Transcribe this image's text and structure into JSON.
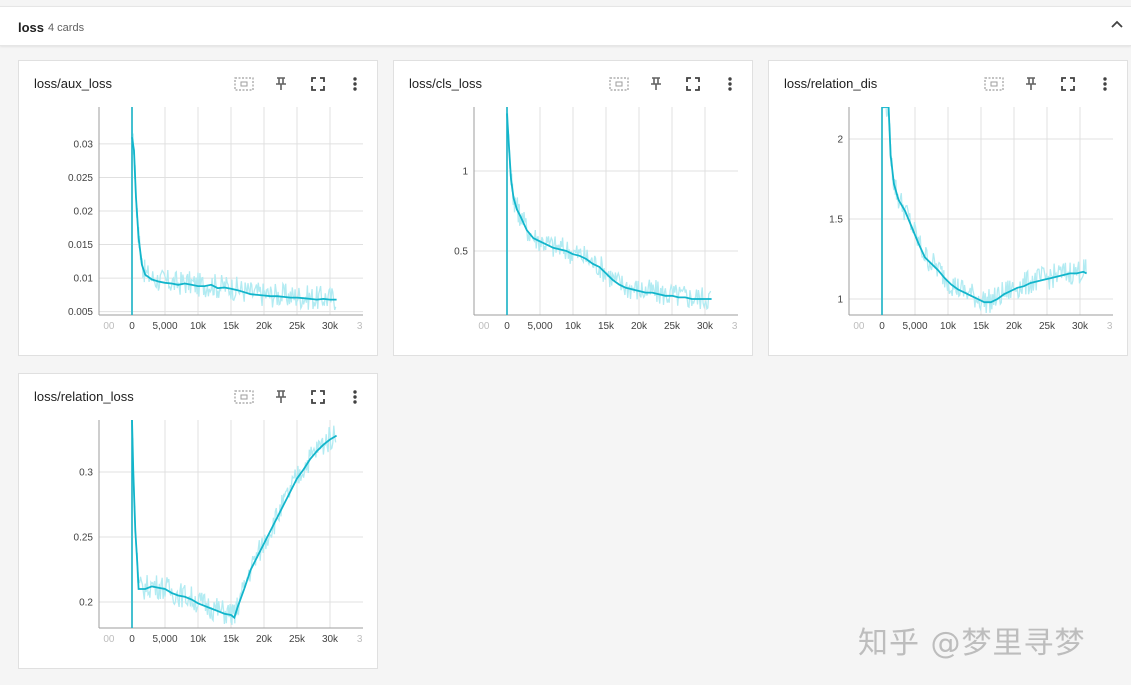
{
  "group": {
    "title": "loss",
    "count_label": "4 cards"
  },
  "icons": {
    "collapse": "chevron-up-icon",
    "fit_domain": "fit-domain-icon",
    "pin": "pin-icon",
    "fullscreen": "fullscreen-icon",
    "menu": "more-vert-icon"
  },
  "colors": {
    "smoothed": "#12b5cb",
    "raw": "#b2ebf2",
    "grid": "#e0e0e0",
    "axis": "#9e9e9e"
  },
  "watermark": "知乎 @梦里寻梦",
  "cards": [
    {
      "title": "loss/aux_loss",
      "x_ticks": [
        "00",
        "0",
        "5,000",
        "10k",
        "15k",
        "20k",
        "25k",
        "30k",
        "3"
      ],
      "y_ticks": [
        "0.005",
        "0.01",
        "0.015",
        "0.02",
        "0.025",
        "0.03"
      ]
    },
    {
      "title": "loss/cls_loss",
      "x_ticks": [
        "00",
        "0",
        "5,000",
        "10k",
        "15k",
        "20k",
        "25k",
        "30k",
        "3"
      ],
      "y_ticks": [
        "0.5",
        "1"
      ]
    },
    {
      "title": "loss/relation_dis",
      "x_ticks": [
        "00",
        "0",
        "5,000",
        "10k",
        "15k",
        "20k",
        "25k",
        "30k",
        "3"
      ],
      "y_ticks": [
        "1",
        "1.5",
        "2"
      ]
    },
    {
      "title": "loss/relation_loss",
      "x_ticks": [
        "00",
        "0",
        "5,000",
        "10k",
        "15k",
        "20k",
        "25k",
        "30k",
        "3"
      ],
      "y_ticks": [
        "0.2",
        "0.25",
        "0.3"
      ]
    }
  ],
  "chart_data": [
    {
      "type": "line",
      "title": "loss/aux_loss",
      "xlim": [
        -5000,
        35000
      ],
      "ylim": [
        0.0045,
        0.0355
      ],
      "ylog": false,
      "series": [
        {
          "values": [
            [
              0,
              0.031
            ],
            [
              300,
              0.029
            ],
            [
              600,
              0.022
            ],
            [
              1000,
              0.016
            ],
            [
              1500,
              0.012
            ],
            [
              2000,
              0.0105
            ],
            [
              3000,
              0.0098
            ],
            [
              4000,
              0.0095
            ],
            [
              5000,
              0.0093
            ],
            [
              6000,
              0.0092
            ],
            [
              7000,
              0.009
            ],
            [
              8000,
              0.0092
            ],
            [
              9000,
              0.009
            ],
            [
              10000,
              0.0088
            ],
            [
              11000,
              0.0088
            ],
            [
              12000,
              0.009
            ],
            [
              13000,
              0.0085
            ],
            [
              14000,
              0.0086
            ],
            [
              15000,
              0.0084
            ],
            [
              16000,
              0.0082
            ],
            [
              17000,
              0.0079
            ],
            [
              18000,
              0.0076
            ],
            [
              19000,
              0.0075
            ],
            [
              20000,
              0.0074
            ],
            [
              21000,
              0.0073
            ],
            [
              22000,
              0.0073
            ],
            [
              23000,
              0.0072
            ],
            [
              24000,
              0.0071
            ],
            [
              25000,
              0.0071
            ],
            [
              26000,
              0.007
            ],
            [
              27000,
              0.0069
            ],
            [
              28000,
              0.0068
            ],
            [
              29000,
              0.0069
            ],
            [
              30000,
              0.0068
            ],
            [
              31000,
              0.0068
            ]
          ]
        }
      ]
    },
    {
      "type": "line",
      "title": "loss/cls_loss",
      "xlim": [
        -5000,
        35000
      ],
      "ylim": [
        0.1,
        1.4
      ],
      "ylog": false,
      "series": [
        {
          "values": [
            [
              0,
              1.36
            ],
            [
              300,
              1.15
            ],
            [
              600,
              0.95
            ],
            [
              1000,
              0.83
            ],
            [
              1500,
              0.76
            ],
            [
              2000,
              0.72
            ],
            [
              3000,
              0.63
            ],
            [
              4000,
              0.58
            ],
            [
              5000,
              0.56
            ],
            [
              6000,
              0.54
            ],
            [
              7000,
              0.52
            ],
            [
              8000,
              0.51
            ],
            [
              9000,
              0.5
            ],
            [
              10000,
              0.48
            ],
            [
              11000,
              0.47
            ],
            [
              12000,
              0.45
            ],
            [
              13000,
              0.42
            ],
            [
              14000,
              0.4
            ],
            [
              15000,
              0.36
            ],
            [
              16000,
              0.32
            ],
            [
              17000,
              0.29
            ],
            [
              18000,
              0.27
            ],
            [
              19000,
              0.26
            ],
            [
              20000,
              0.25
            ],
            [
              21000,
              0.24
            ],
            [
              22000,
              0.24
            ],
            [
              23000,
              0.23
            ],
            [
              24000,
              0.22
            ],
            [
              25000,
              0.22
            ],
            [
              26000,
              0.21
            ],
            [
              27000,
              0.21
            ],
            [
              28000,
              0.2
            ],
            [
              29000,
              0.2
            ],
            [
              30000,
              0.2
            ],
            [
              31000,
              0.2
            ]
          ]
        }
      ]
    },
    {
      "type": "line",
      "title": "loss/relation_dis",
      "xlim": [
        -5000,
        35000
      ],
      "ylim": [
        0.9,
        2.2
      ],
      "ylog": false,
      "series": [
        {
          "values": [
            [
              0,
              2.2
            ],
            [
              1000,
              2.2
            ],
            [
              1300,
              1.9
            ],
            [
              1800,
              1.72
            ],
            [
              2500,
              1.62
            ],
            [
              3500,
              1.55
            ],
            [
              4500,
              1.45
            ],
            [
              5500,
              1.35
            ],
            [
              6500,
              1.26
            ],
            [
              7500,
              1.22
            ],
            [
              8500,
              1.18
            ],
            [
              9500,
              1.13
            ],
            [
              10500,
              1.09
            ],
            [
              11500,
              1.06
            ],
            [
              12500,
              1.04
            ],
            [
              13500,
              1.02
            ],
            [
              14500,
              1.0
            ],
            [
              15500,
              0.98
            ],
            [
              16500,
              0.98
            ],
            [
              17500,
              1.0
            ],
            [
              18500,
              1.03
            ],
            [
              19500,
              1.05
            ],
            [
              20500,
              1.07
            ],
            [
              21500,
              1.08
            ],
            [
              22500,
              1.1
            ],
            [
              23500,
              1.11
            ],
            [
              24500,
              1.12
            ],
            [
              25500,
              1.13
            ],
            [
              26500,
              1.14
            ],
            [
              27500,
              1.15
            ],
            [
              28500,
              1.16
            ],
            [
              29500,
              1.16
            ],
            [
              30500,
              1.17
            ],
            [
              31000,
              1.16
            ]
          ]
        }
      ]
    },
    {
      "type": "line",
      "title": "loss/relation_loss",
      "xlim": [
        -5000,
        35000
      ],
      "ylim": [
        0.18,
        0.34
      ],
      "ylog": false,
      "series": [
        {
          "values": [
            [
              0,
              0.34
            ],
            [
              200,
              0.3
            ],
            [
              500,
              0.255
            ],
            [
              800,
              0.23
            ],
            [
              1000,
              0.21
            ],
            [
              2000,
              0.21
            ],
            [
              3000,
              0.212
            ],
            [
              4000,
              0.211
            ],
            [
              5000,
              0.21
            ],
            [
              6000,
              0.207
            ],
            [
              7000,
              0.205
            ],
            [
              8000,
              0.204
            ],
            [
              9000,
              0.202
            ],
            [
              10000,
              0.199
            ],
            [
              11000,
              0.197
            ],
            [
              12000,
              0.195
            ],
            [
              13000,
              0.193
            ],
            [
              14000,
              0.191
            ],
            [
              15000,
              0.19
            ],
            [
              15500,
              0.188
            ],
            [
              16000,
              0.196
            ],
            [
              17000,
              0.21
            ],
            [
              18000,
              0.225
            ],
            [
              19000,
              0.235
            ],
            [
              20000,
              0.245
            ],
            [
              21000,
              0.255
            ],
            [
              22000,
              0.265
            ],
            [
              23000,
              0.275
            ],
            [
              24000,
              0.285
            ],
            [
              25000,
              0.295
            ],
            [
              26000,
              0.302
            ],
            [
              27000,
              0.31
            ],
            [
              28000,
              0.316
            ],
            [
              29000,
              0.321
            ],
            [
              30000,
              0.325
            ],
            [
              31000,
              0.328
            ]
          ]
        }
      ]
    }
  ]
}
